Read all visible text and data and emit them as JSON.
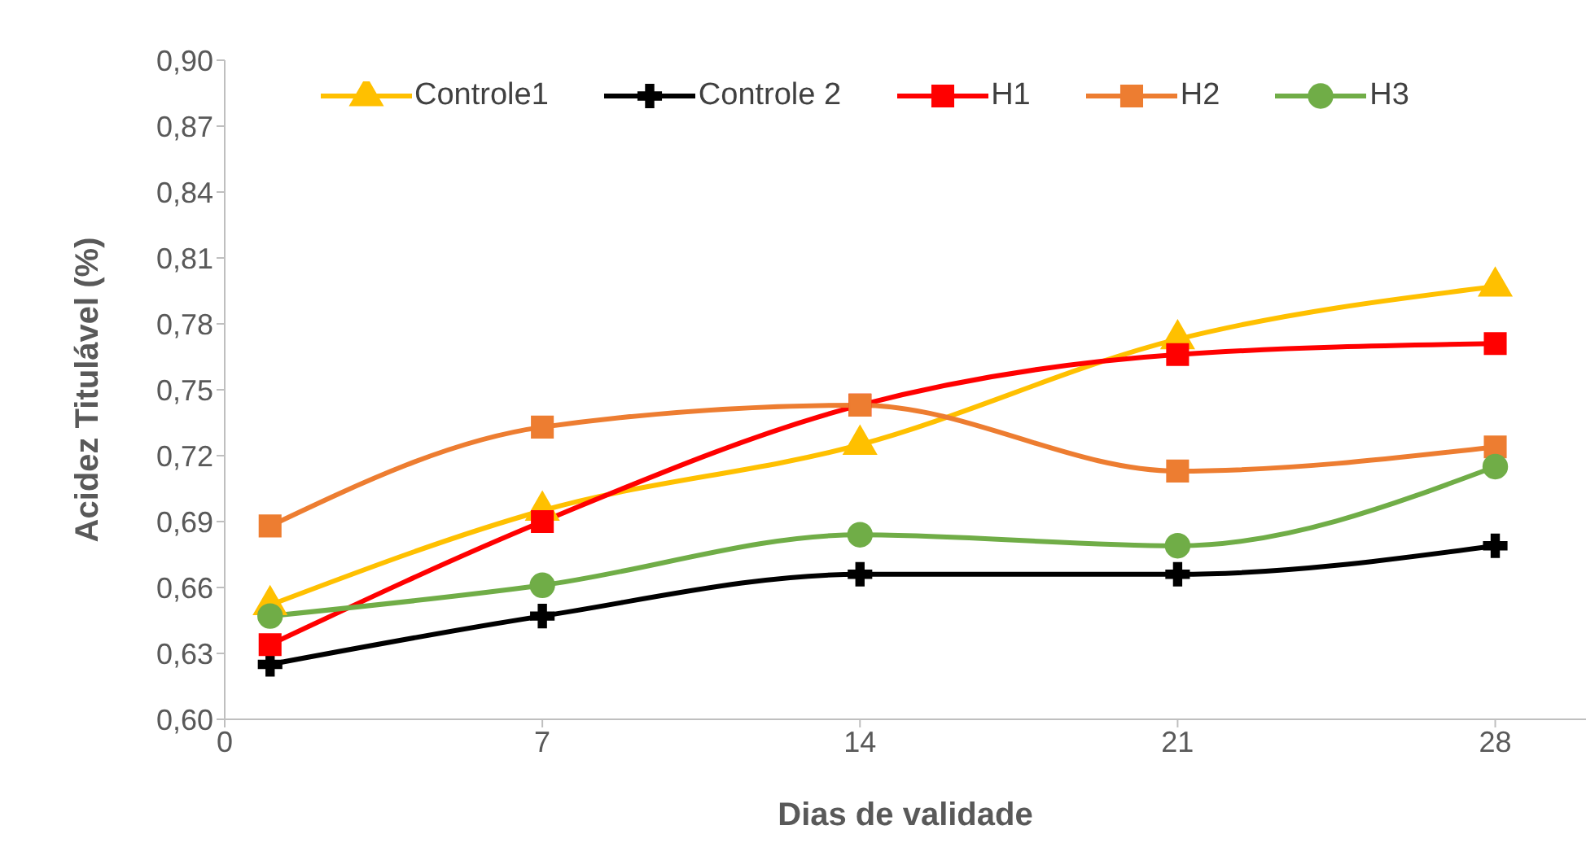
{
  "chart_data": {
    "type": "line",
    "xlabel": "Dias de validade",
    "ylabel": "Acidez Titulável (%)",
    "x": [
      1,
      7,
      14,
      21,
      28
    ],
    "xlim": [
      0,
      30
    ],
    "xticks": [
      0,
      7,
      14,
      21,
      28
    ],
    "ylim": [
      0.6,
      0.9
    ],
    "yticks": [
      {
        "value": 0.6,
        "label": "0,60"
      },
      {
        "value": 0.63,
        "label": "0,63"
      },
      {
        "value": 0.66,
        "label": "0,66"
      },
      {
        "value": 0.69,
        "label": "0,69"
      },
      {
        "value": 0.72,
        "label": "0,72"
      },
      {
        "value": 0.75,
        "label": "0,75"
      },
      {
        "value": 0.78,
        "label": "0,78"
      },
      {
        "value": 0.81,
        "label": "0,81"
      },
      {
        "value": 0.84,
        "label": "0,84"
      },
      {
        "value": 0.87,
        "label": "0,87"
      },
      {
        "value": 0.9,
        "label": "0,90"
      }
    ],
    "grid": false,
    "legend": "top",
    "line_style": "solid",
    "series": [
      {
        "name": "Controle1",
        "color": "#ffc000",
        "marker": "triangle",
        "values": [
          0.652,
          0.695,
          0.725,
          0.773,
          0.797
        ]
      },
      {
        "name": "Controle 2",
        "color": "#000000",
        "marker": "cross",
        "values": [
          0.625,
          0.647,
          0.666,
          0.666,
          0.679
        ]
      },
      {
        "name": "H1",
        "color": "#ff0000",
        "marker": "square",
        "values": [
          0.634,
          0.69,
          0.743,
          0.766,
          0.771
        ]
      },
      {
        "name": "H2",
        "color": "#ed7d31",
        "marker": "square",
        "values": [
          0.688,
          0.733,
          0.743,
          0.713,
          0.724
        ]
      },
      {
        "name": "H3",
        "color": "#70ad47",
        "marker": "circle",
        "values": [
          0.647,
          0.661,
          0.684,
          0.679,
          0.715
        ]
      }
    ]
  }
}
